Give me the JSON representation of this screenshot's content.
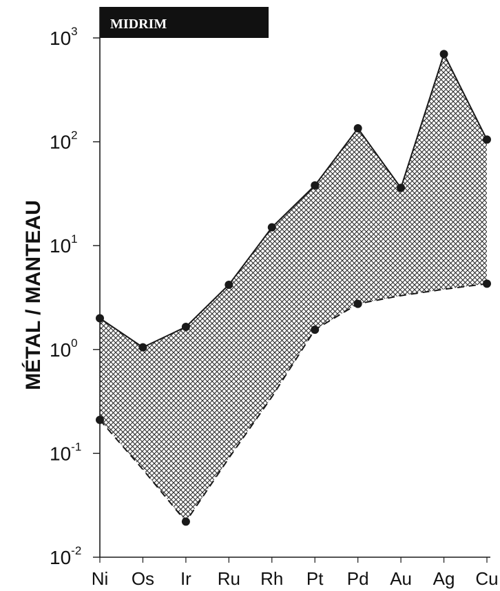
{
  "chart_data": {
    "type": "line",
    "title": "MIDRIM",
    "ylabel": "MÉTAL / MANTEAU",
    "xlabel": "",
    "categories": [
      "Ni",
      "Os",
      "Ir",
      "Ru",
      "Rh",
      "Pt",
      "Pd",
      "Au",
      "Ag",
      "Cu"
    ],
    "y_scale": "log",
    "ylim": [
      0.01,
      1000
    ],
    "y_ticks": [
      {
        "base": "10",
        "exp": "3"
      },
      {
        "base": "10",
        "exp": "2"
      },
      {
        "base": "10",
        "exp": "1"
      },
      {
        "base": "10",
        "exp": "0"
      },
      {
        "base": "10",
        "exp": "-1"
      },
      {
        "base": "10",
        "exp": "-2"
      }
    ],
    "y_tick_values": [
      1000,
      100,
      10,
      1,
      0.1,
      0.01
    ],
    "series": [
      {
        "style": "solid",
        "values": [
          2.0,
          1.05,
          1.65,
          4.2,
          15,
          38,
          135,
          36,
          700,
          105
        ]
      },
      {
        "style": "dashed",
        "values": [
          0.21,
          null,
          0.022,
          null,
          null,
          1.55,
          2.75,
          null,
          null,
          4.3
        ]
      }
    ],
    "shaded_range": {
      "between": [
        "solid",
        "dashed"
      ],
      "pattern": "crosshatch",
      "lower_envelope": [
        0.21,
        0.07,
        0.022,
        0.09,
        0.35,
        1.55,
        2.75,
        3.3,
        3.8,
        4.3
      ]
    },
    "grid": false,
    "legend": "none",
    "colors": {
      "line": "#1a1a1a",
      "hatch": "#2a2a2a",
      "banner": "#111111",
      "banner_text": "#ffffff"
    }
  }
}
